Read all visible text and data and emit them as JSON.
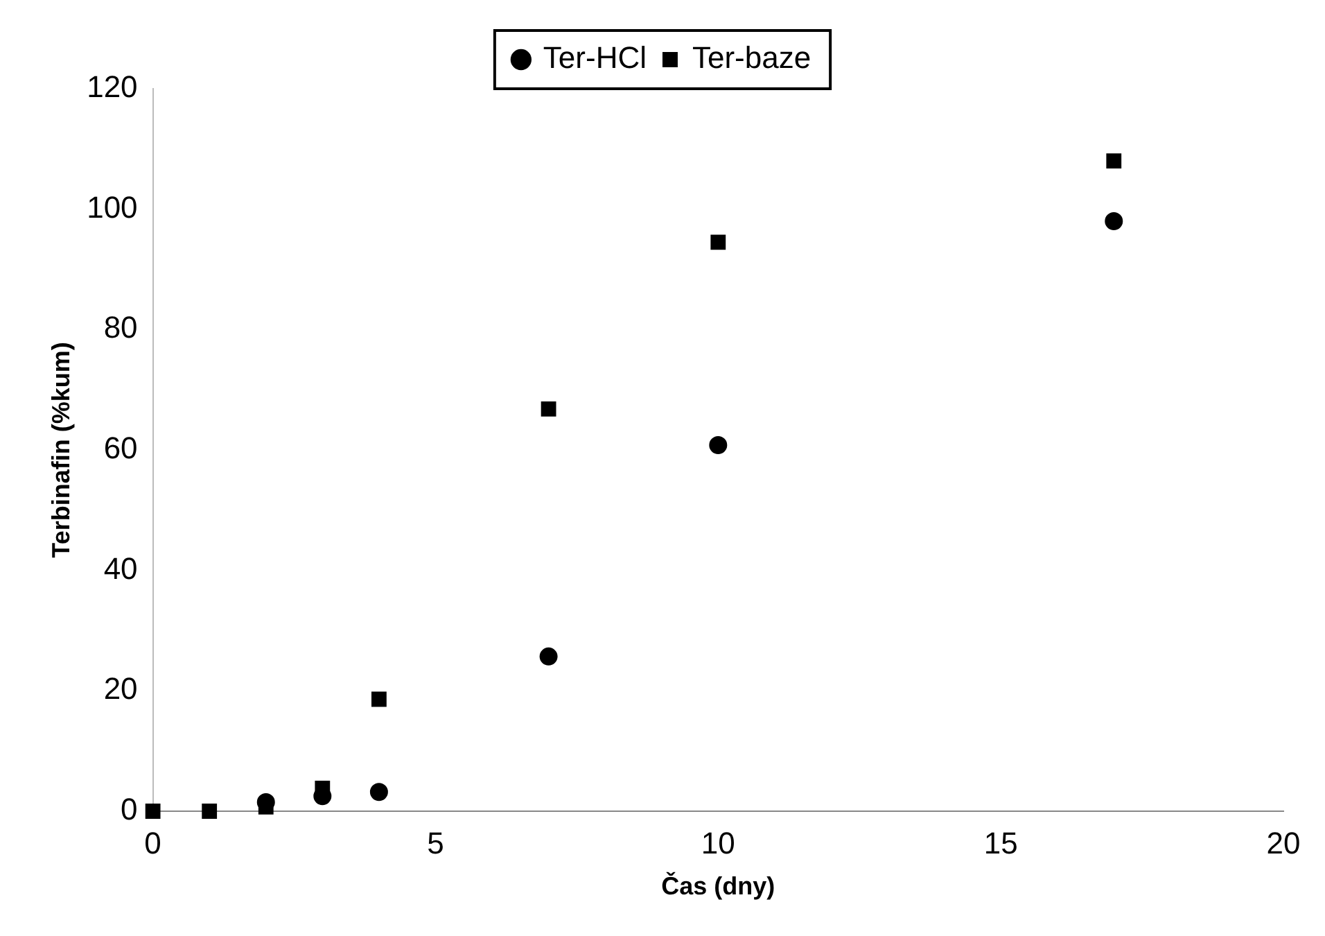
{
  "chart_data": {
    "type": "scatter",
    "xlabel": "Čas (dny)",
    "ylabel": "Terbinafin (%kum)",
    "xlim": [
      0,
      20
    ],
    "xticks": [
      0,
      5,
      10,
      15,
      20
    ],
    "ylim": [
      0,
      120
    ],
    "yticks": [
      0,
      20,
      40,
      60,
      80,
      100,
      120
    ],
    "grid": false,
    "legend": "top",
    "series": [
      {
        "name": "Ter-HCl",
        "color": "#000000",
        "marker": "circle",
        "x": [
          2,
          3,
          4,
          7,
          10,
          17
        ],
        "values": [
          1.5,
          2.5,
          3.2,
          25.7,
          60.8,
          98
        ]
      },
      {
        "name": "Ter-baze",
        "color": "#000000",
        "marker": "square",
        "x": [
          0,
          1,
          2,
          3,
          4,
          7,
          10,
          17
        ],
        "values": [
          0,
          0,
          0.7,
          3.8,
          18.6,
          66.8,
          94.5,
          108
        ]
      }
    ]
  }
}
